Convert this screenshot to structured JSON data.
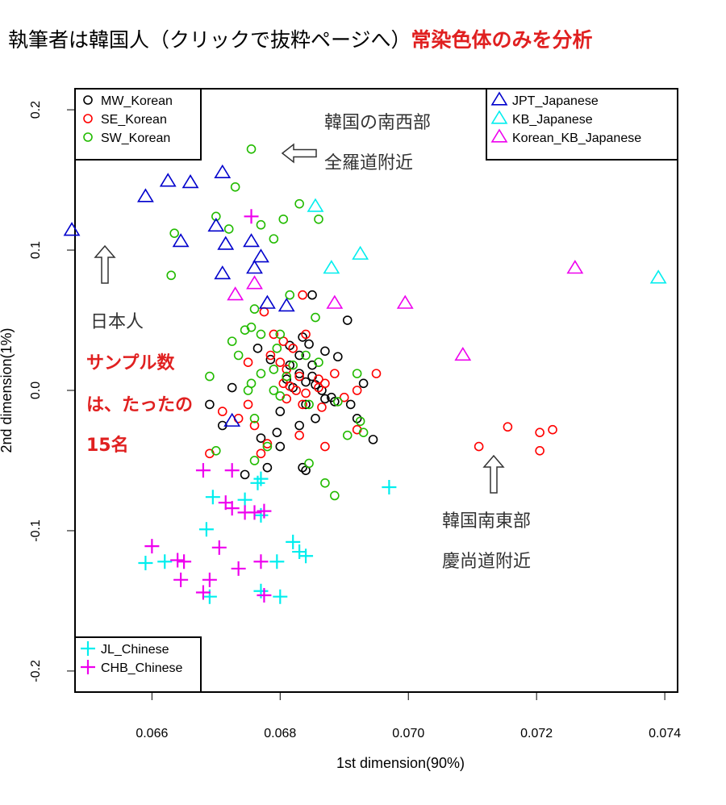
{
  "header": {
    "title": "執筆者は韓国人（クリックで抜粋ページへ）",
    "note": "常染色体のみを分析"
  },
  "annotations": {
    "southwest": [
      "韓国の南西部",
      "全羅道附近"
    ],
    "japanese": "日本人",
    "sample_count": [
      "サンプル数",
      "は、たったの",
      "15名"
    ],
    "southeast": [
      "韓国南東部",
      "慶尚道附近"
    ]
  },
  "colors": {
    "MW_Korean": "#000000",
    "SE_Korean": "#ff0000",
    "SW_Korean": "#22bb00",
    "JPT_Japanese": "#0000cc",
    "KB_Japanese": "#00eeee",
    "Korean_KB_Japanese": "#ee00ee",
    "JL_Chinese": "#00eeee",
    "CHB_Chinese": "#ee00ee",
    "arrow": "#333333"
  },
  "chart_data": {
    "type": "scatter",
    "xlabel": "1st dimension(90%)",
    "ylabel": "2nd dimension(1%)",
    "xlim": [
      0.0648,
      0.0742
    ],
    "ylim": [
      -0.215,
      0.215
    ],
    "xticks": [
      "0.066",
      "0.068",
      "0.070",
      "0.072",
      "0.074"
    ],
    "yticks": [
      "-0.2",
      "-0.1",
      "0.0",
      "0.1",
      "0.2"
    ],
    "legend_top_left": [
      "MW_Korean",
      "SE_Korean",
      "SW_Korean"
    ],
    "legend_top_right": [
      "JPT_Japanese",
      "KB_Japanese",
      "Korean_KB_Japanese"
    ],
    "legend_bottom_left": [
      "JL_Chinese",
      "CHB_Chinese"
    ],
    "series": [
      {
        "name": "MW_Korean",
        "marker": "circle",
        "color": "#000000",
        "points": [
          [
            0.0685,
            0.068
          ],
          [
            0.06905,
            0.05
          ],
          [
            0.06835,
            0.038
          ],
          [
            0.06845,
            0.033
          ],
          [
            0.06815,
            0.032
          ],
          [
            0.0687,
            0.028
          ],
          [
            0.0689,
            0.024
          ],
          [
            0.0685,
            0.018
          ],
          [
            0.0683,
            0.012
          ],
          [
            0.0681,
            0.008
          ],
          [
            0.0684,
            0.006
          ],
          [
            0.06855,
            0.004
          ],
          [
            0.0682,
            0.002
          ],
          [
            0.06865,
            0.0
          ],
          [
            0.0687,
            -0.006
          ],
          [
            0.06885,
            -0.008
          ],
          [
            0.0684,
            -0.01
          ],
          [
            0.06855,
            -0.02
          ],
          [
            0.0683,
            -0.025
          ],
          [
            0.06795,
            -0.03
          ],
          [
            0.0677,
            -0.034
          ],
          [
            0.068,
            -0.04
          ],
          [
            0.0678,
            -0.055
          ],
          [
            0.06835,
            -0.055
          ],
          [
            0.0684,
            -0.057
          ],
          [
            0.06745,
            -0.06
          ],
          [
            0.0688,
            -0.005
          ],
          [
            0.0691,
            -0.01
          ],
          [
            0.0692,
            -0.02
          ],
          [
            0.0693,
            0.005
          ],
          [
            0.06945,
            -0.035
          ],
          [
            0.0671,
            -0.025
          ],
          [
            0.0669,
            -0.01
          ],
          [
            0.06725,
            0.002
          ],
          [
            0.06765,
            0.03
          ],
          [
            0.06785,
            0.022
          ],
          [
            0.06815,
            0.018
          ],
          [
            0.0683,
            0.025
          ],
          [
            0.068,
            -0.015
          ],
          [
            0.0685,
            0.01
          ]
        ]
      },
      {
        "name": "SE_Korean",
        "marker": "circle",
        "color": "#ff0000",
        "points": [
          [
            0.06835,
            0.068
          ],
          [
            0.06775,
            0.056
          ],
          [
            0.0679,
            0.04
          ],
          [
            0.06805,
            0.035
          ],
          [
            0.0682,
            0.03
          ],
          [
            0.06785,
            0.025
          ],
          [
            0.068,
            0.02
          ],
          [
            0.0681,
            0.015
          ],
          [
            0.0683,
            0.01
          ],
          [
            0.0686,
            0.008
          ],
          [
            0.06805,
            0.005
          ],
          [
            0.06815,
            0.003
          ],
          [
            0.06825,
            0.0
          ],
          [
            0.0684,
            -0.002
          ],
          [
            0.0681,
            -0.006
          ],
          [
            0.06835,
            -0.01
          ],
          [
            0.0686,
            0.002
          ],
          [
            0.06865,
            -0.012
          ],
          [
            0.06885,
            0.012
          ],
          [
            0.069,
            -0.005
          ],
          [
            0.0695,
            0.012
          ],
          [
            0.0692,
            -0.028
          ],
          [
            0.0675,
            -0.01
          ],
          [
            0.06735,
            -0.02
          ],
          [
            0.0676,
            -0.025
          ],
          [
            0.0678,
            -0.038
          ],
          [
            0.0683,
            -0.032
          ],
          [
            0.0671,
            -0.015
          ],
          [
            0.0669,
            -0.045
          ],
          [
            0.0677,
            -0.045
          ],
          [
            0.0687,
            -0.04
          ],
          [
            0.0692,
            0.0
          ],
          [
            0.0711,
            -0.04
          ],
          [
            0.07155,
            -0.026
          ],
          [
            0.07205,
            -0.03
          ],
          [
            0.07205,
            -0.043
          ],
          [
            0.07225,
            -0.028
          ],
          [
            0.0675,
            0.02
          ],
          [
            0.0684,
            0.04
          ],
          [
            0.0687,
            0.005
          ]
        ]
      },
      {
        "name": "SW_Korean",
        "marker": "circle",
        "color": "#22bb00",
        "points": [
          [
            0.06755,
            0.172
          ],
          [
            0.0673,
            0.145
          ],
          [
            0.0683,
            0.133
          ],
          [
            0.0686,
            0.122
          ],
          [
            0.06805,
            0.122
          ],
          [
            0.067,
            0.124
          ],
          [
            0.0677,
            0.118
          ],
          [
            0.0672,
            0.115
          ],
          [
            0.0679,
            0.108
          ],
          [
            0.06635,
            0.112
          ],
          [
            0.0663,
            0.082
          ],
          [
            0.06855,
            0.052
          ],
          [
            0.06815,
            0.068
          ],
          [
            0.0676,
            0.058
          ],
          [
            0.06755,
            0.045
          ],
          [
            0.06745,
            0.043
          ],
          [
            0.0677,
            0.04
          ],
          [
            0.068,
            0.04
          ],
          [
            0.06725,
            0.035
          ],
          [
            0.06795,
            0.03
          ],
          [
            0.0684,
            0.025
          ],
          [
            0.0686,
            0.02
          ],
          [
            0.0682,
            0.018
          ],
          [
            0.0679,
            0.015
          ],
          [
            0.0677,
            0.012
          ],
          [
            0.0681,
            0.01
          ],
          [
            0.0669,
            0.01
          ],
          [
            0.06755,
            0.005
          ],
          [
            0.0679,
            0.0
          ],
          [
            0.068,
            -0.004
          ],
          [
            0.06845,
            -0.01
          ],
          [
            0.0689,
            -0.008
          ],
          [
            0.06925,
            -0.022
          ],
          [
            0.0693,
            -0.03
          ],
          [
            0.0692,
            0.012
          ],
          [
            0.06905,
            -0.032
          ],
          [
            0.0676,
            -0.02
          ],
          [
            0.0678,
            -0.04
          ],
          [
            0.0676,
            -0.05
          ],
          [
            0.067,
            -0.043
          ],
          [
            0.06845,
            -0.052
          ],
          [
            0.0687,
            -0.066
          ],
          [
            0.06885,
            -0.075
          ],
          [
            0.0675,
            0.0
          ],
          [
            0.06735,
            0.025
          ]
        ]
      },
      {
        "name": "JPT_Japanese",
        "marker": "triangle",
        "color": "#0000cc",
        "points": [
          [
            0.06475,
            0.114
          ],
          [
            0.0659,
            0.138
          ],
          [
            0.06625,
            0.149
          ],
          [
            0.0666,
            0.148
          ],
          [
            0.0671,
            0.155
          ],
          [
            0.06645,
            0.106
          ],
          [
            0.067,
            0.117
          ],
          [
            0.06715,
            0.104
          ],
          [
            0.06755,
            0.106
          ],
          [
            0.0677,
            0.095
          ],
          [
            0.0676,
            0.087
          ],
          [
            0.0671,
            0.083
          ],
          [
            0.0678,
            0.062
          ],
          [
            0.0681,
            0.06
          ],
          [
            0.06725,
            -0.022
          ]
        ]
      },
      {
        "name": "KB_Japanese",
        "marker": "triangle",
        "color": "#00eeee",
        "points": [
          [
            0.06855,
            0.131
          ],
          [
            0.0688,
            0.087
          ],
          [
            0.06925,
            0.097
          ],
          [
            0.0739,
            0.08
          ]
        ]
      },
      {
        "name": "Korean_KB_Japanese",
        "marker": "triangle",
        "color": "#ee00ee",
        "points": [
          [
            0.0673,
            0.068
          ],
          [
            0.0676,
            0.076
          ],
          [
            0.06885,
            0.062
          ],
          [
            0.06995,
            0.062
          ],
          [
            0.07085,
            0.025
          ],
          [
            0.0726,
            0.087
          ]
        ]
      },
      {
        "name": "JL_Chinese",
        "marker": "plus",
        "color": "#00eeee",
        "points": [
          [
            0.0677,
            -0.063
          ],
          [
            0.06765,
            -0.066
          ],
          [
            0.06695,
            -0.076
          ],
          [
            0.06745,
            -0.078
          ],
          [
            0.0677,
            -0.089
          ],
          [
            0.06685,
            -0.099
          ],
          [
            0.0682,
            -0.108
          ],
          [
            0.0683,
            -0.115
          ],
          [
            0.0684,
            -0.118
          ],
          [
            0.0659,
            -0.123
          ],
          [
            0.0662,
            -0.122
          ],
          [
            0.06795,
            -0.122
          ],
          [
            0.0669,
            -0.147
          ],
          [
            0.0677,
            -0.143
          ],
          [
            0.068,
            -0.147
          ],
          [
            0.0697,
            -0.069
          ]
        ]
      },
      {
        "name": "CHB_Chinese",
        "marker": "plus",
        "color": "#ee00ee",
        "points": [
          [
            0.06755,
            0.124
          ],
          [
            0.0668,
            -0.057
          ],
          [
            0.06725,
            -0.057
          ],
          [
            0.06715,
            -0.08
          ],
          [
            0.06725,
            -0.084
          ],
          [
            0.06745,
            -0.087
          ],
          [
            0.0676,
            -0.087
          ],
          [
            0.06775,
            -0.086
          ],
          [
            0.066,
            -0.111
          ],
          [
            0.06705,
            -0.112
          ],
          [
            0.0664,
            -0.121
          ],
          [
            0.0665,
            -0.122
          ],
          [
            0.0677,
            -0.122
          ],
          [
            0.06735,
            -0.127
          ],
          [
            0.06645,
            -0.135
          ],
          [
            0.0669,
            -0.135
          ],
          [
            0.0668,
            -0.144
          ],
          [
            0.06775,
            -0.146
          ]
        ]
      }
    ]
  }
}
